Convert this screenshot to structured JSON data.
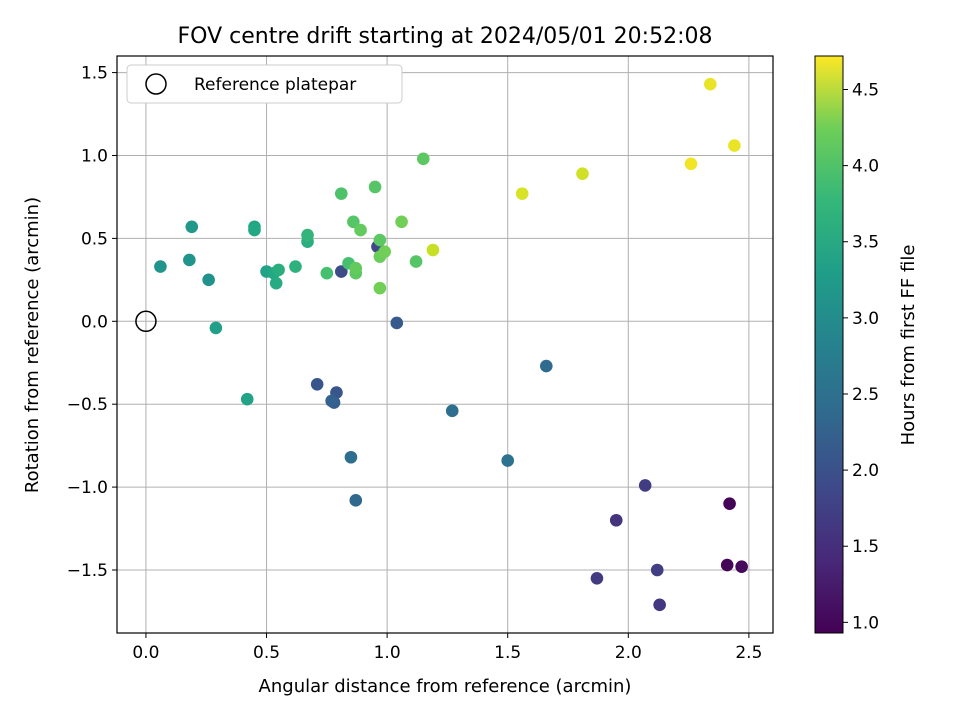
{
  "chart_data": {
    "type": "scatter",
    "title": "FOV centre drift starting at 2024/05/01 20:52:08",
    "xlabel": "Angular distance from reference (arcmin)",
    "ylabel": "Rotation from reference (arcmin)",
    "xlim": [
      -0.12,
      2.6
    ],
    "ylim": [
      -1.88,
      1.6
    ],
    "xticks": [
      0.0,
      0.5,
      1.0,
      1.5,
      2.0,
      2.5
    ],
    "xtick_labels": [
      "0.0",
      "0.5",
      "1.0",
      "1.5",
      "2.0",
      "2.5"
    ],
    "yticks": [
      -1.5,
      -1.0,
      -0.5,
      0.0,
      0.5,
      1.0,
      1.5
    ],
    "ytick_labels": [
      "−1.5",
      "−1.0",
      "−0.5",
      "0.0",
      "0.5",
      "1.0",
      "1.5"
    ],
    "grid": true,
    "legend": {
      "position": "upper-left",
      "entries": [
        "Reference platepar"
      ]
    },
    "reference_point": {
      "x": 0.0,
      "y": 0.0,
      "marker": "hollow-circle"
    },
    "colorbar": {
      "label": "Hours from first FF file",
      "colormap": "viridis",
      "range": [
        0.93,
        4.72
      ],
      "ticks": [
        1.0,
        1.5,
        2.0,
        2.5,
        3.0,
        3.5,
        4.0,
        4.5
      ],
      "tick_labels": [
        "1.0",
        "1.5",
        "2.0",
        "2.5",
        "3.0",
        "3.5",
        "4.0",
        "4.5"
      ]
    },
    "points": [
      {
        "x": 2.42,
        "y": -1.1,
        "c": 0.95
      },
      {
        "x": 2.41,
        "y": -1.47,
        "c": 0.97
      },
      {
        "x": 2.47,
        "y": -1.48,
        "c": 1.0
      },
      {
        "x": 2.13,
        "y": -1.71,
        "c": 1.55
      },
      {
        "x": 2.12,
        "y": -1.5,
        "c": 1.62
      },
      {
        "x": 1.95,
        "y": -1.2,
        "c": 1.5
      },
      {
        "x": 1.87,
        "y": -1.55,
        "c": 1.58
      },
      {
        "x": 2.07,
        "y": -0.99,
        "c": 1.6
      },
      {
        "x": 0.96,
        "y": 0.45,
        "c": 1.75
      },
      {
        "x": 0.81,
        "y": 0.3,
        "c": 1.8
      },
      {
        "x": 0.79,
        "y": -0.43,
        "c": 1.95
      },
      {
        "x": 0.71,
        "y": -0.38,
        "c": 1.95
      },
      {
        "x": 1.04,
        "y": -0.01,
        "c": 2.0
      },
      {
        "x": 0.78,
        "y": -0.49,
        "c": 2.05
      },
      {
        "x": 0.77,
        "y": -0.48,
        "c": 2.1
      },
      {
        "x": 0.87,
        "y": -1.08,
        "c": 2.2
      },
      {
        "x": 0.85,
        "y": -0.82,
        "c": 2.3
      },
      {
        "x": 1.27,
        "y": -0.54,
        "c": 2.3
      },
      {
        "x": 1.5,
        "y": -0.84,
        "c": 2.35
      },
      {
        "x": 1.66,
        "y": -0.27,
        "c": 2.25
      },
      {
        "x": 0.06,
        "y": 0.33,
        "c": 2.9
      },
      {
        "x": 0.18,
        "y": 0.37,
        "c": 2.9
      },
      {
        "x": 0.19,
        "y": 0.57,
        "c": 2.95
      },
      {
        "x": 0.26,
        "y": 0.25,
        "c": 2.85
      },
      {
        "x": 0.29,
        "y": -0.04,
        "c": 3.05
      },
      {
        "x": 0.42,
        "y": -0.47,
        "c": 3.1
      },
      {
        "x": 0.45,
        "y": 0.57,
        "c": 3.15
      },
      {
        "x": 0.45,
        "y": 0.55,
        "c": 3.2
      },
      {
        "x": 0.5,
        "y": 0.3,
        "c": 3.1
      },
      {
        "x": 0.53,
        "y": 0.29,
        "c": 3.2
      },
      {
        "x": 0.54,
        "y": 0.23,
        "c": 3.25
      },
      {
        "x": 0.55,
        "y": 0.31,
        "c": 3.3
      },
      {
        "x": 0.62,
        "y": 0.33,
        "c": 3.35
      },
      {
        "x": 0.67,
        "y": 0.48,
        "c": 3.3
      },
      {
        "x": 0.67,
        "y": 0.52,
        "c": 3.4
      },
      {
        "x": 0.75,
        "y": 0.29,
        "c": 3.6
      },
      {
        "x": 0.81,
        "y": 0.77,
        "c": 3.65
      },
      {
        "x": 0.84,
        "y": 0.35,
        "c": 3.6
      },
      {
        "x": 0.86,
        "y": 0.6,
        "c": 3.7
      },
      {
        "x": 0.87,
        "y": 0.29,
        "c": 3.75
      },
      {
        "x": 0.87,
        "y": 0.32,
        "c": 3.8
      },
      {
        "x": 0.89,
        "y": 0.55,
        "c": 3.8
      },
      {
        "x": 0.95,
        "y": 0.81,
        "c": 3.7
      },
      {
        "x": 0.97,
        "y": 0.49,
        "c": 3.75
      },
      {
        "x": 0.97,
        "y": 0.39,
        "c": 3.85
      },
      {
        "x": 0.97,
        "y": 0.2,
        "c": 3.9
      },
      {
        "x": 0.99,
        "y": 0.42,
        "c": 3.9
      },
      {
        "x": 1.06,
        "y": 0.6,
        "c": 3.9
      },
      {
        "x": 1.12,
        "y": 0.36,
        "c": 3.7
      },
      {
        "x": 1.15,
        "y": 0.98,
        "c": 3.75
      },
      {
        "x": 1.19,
        "y": 0.43,
        "c": 4.4
      },
      {
        "x": 1.56,
        "y": 0.77,
        "c": 4.5
      },
      {
        "x": 1.81,
        "y": 0.89,
        "c": 4.45
      },
      {
        "x": 2.26,
        "y": 0.95,
        "c": 4.65
      },
      {
        "x": 2.34,
        "y": 1.43,
        "c": 4.6
      },
      {
        "x": 2.44,
        "y": 1.06,
        "c": 4.6
      }
    ]
  }
}
